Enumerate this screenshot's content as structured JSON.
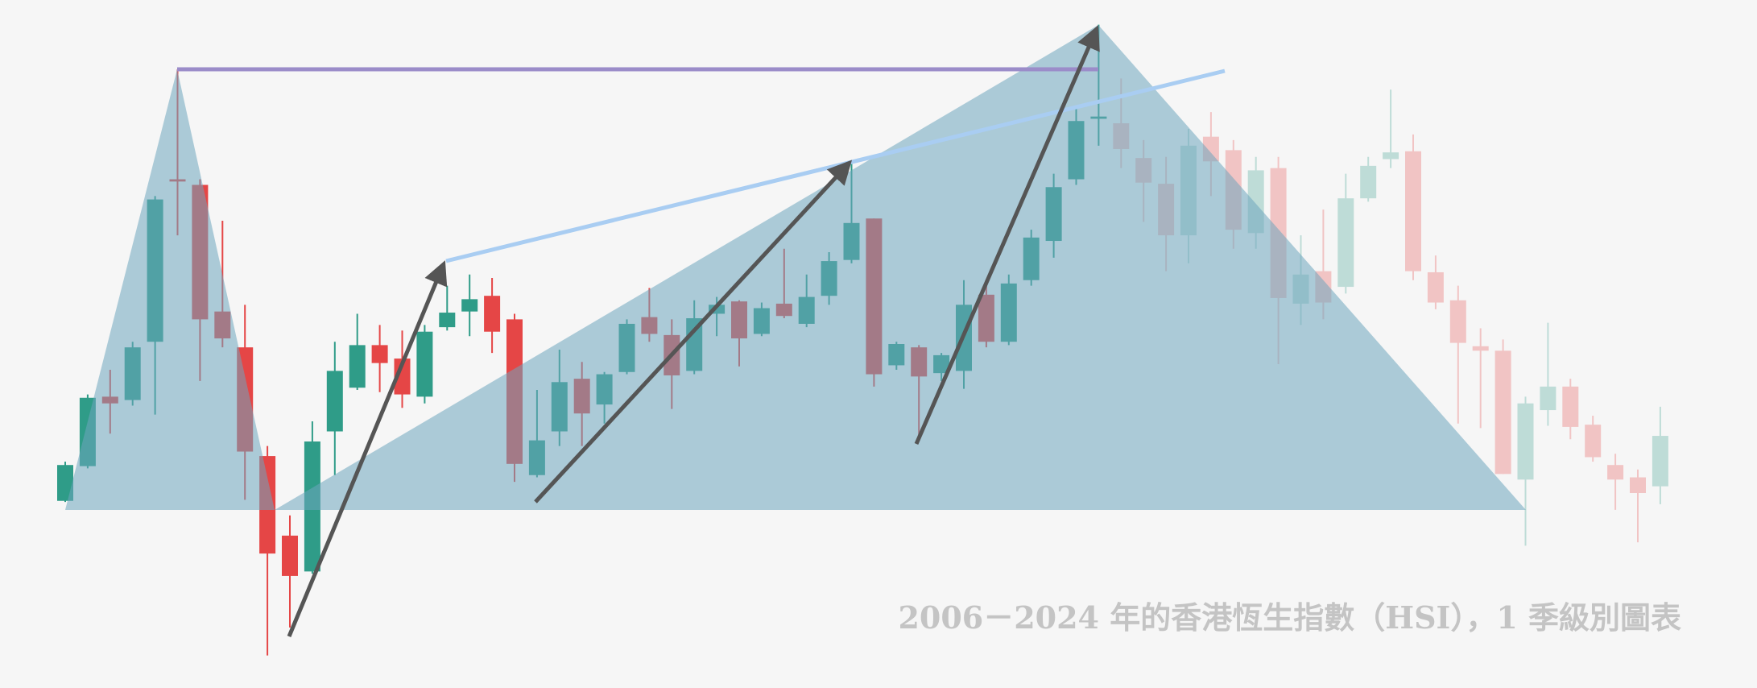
{
  "chart_data": {
    "type": "candlestick",
    "title": "2006－2024 年的香港恆生指數（HSI），1 季級別圖表",
    "up_color": "#2f9c88",
    "down_color": "#e54646",
    "ylim": [
      9840,
      34400
    ],
    "open": [
      16520,
      17760,
      20240,
      20120,
      22200,
      28000,
      27800,
      23280,
      22000,
      18120,
      15280,
      14000,
      19000,
      20560,
      22080,
      21600,
      20240,
      22720,
      23280,
      23840,
      23000,
      17440,
      19000,
      20880,
      19960,
      21120,
      23080,
      22440,
      21160,
      23200,
      23640,
      22480,
      23560,
      22840,
      23840,
      25120,
      26600,
      21360,
      22000,
      21080,
      21160,
      23880,
      22200,
      24400,
      25800,
      28000,
      30160,
      30000,
      28760,
      27840,
      26000,
      29520,
      29040,
      26080,
      28400,
      23560,
      24720,
      24160,
      27320,
      28720,
      29000,
      24680,
      23680,
      22040,
      21880,
      17280,
      19760,
      20600,
      19240,
      17800,
      17360,
      17040
    ],
    "high": [
      17920,
      20320,
      21200,
      22200,
      27400,
      31920,
      28000,
      26520,
      23520,
      18480,
      16000,
      19360,
      22200,
      23200,
      22800,
      22600,
      22800,
      24200,
      24600,
      24480,
      23200,
      20480,
      21920,
      21480,
      21120,
      23000,
      24120,
      23000,
      23680,
      23800,
      23680,
      23600,
      25520,
      24600,
      25400,
      28600,
      26600,
      22200,
      22080,
      21800,
      24400,
      24200,
      24600,
      26200,
      28200,
      30600,
      33520,
      31600,
      29400,
      28800,
      29800,
      30400,
      29400,
      28800,
      28800,
      26000,
      26920,
      28200,
      28800,
      31200,
      29600,
      25280,
      24200,
      22680,
      22280,
      20240,
      22880,
      20880,
      19560,
      18200,
      17640,
      19880
    ],
    "low": [
      16480,
      17680,
      18920,
      19920,
      19600,
      26000,
      20800,
      22000,
      16560,
      11000,
      12000,
      13920,
      17440,
      20480,
      20400,
      19840,
      20000,
      22600,
      22400,
      21800,
      17200,
      17360,
      18480,
      18480,
      19280,
      21040,
      22200,
      19800,
      21040,
      22400,
      21320,
      22400,
      23040,
      22720,
      23520,
      25000,
      20600,
      21200,
      18800,
      20800,
      20520,
      22000,
      22080,
      24200,
      25200,
      27800,
      29200,
      28400,
      26480,
      24720,
      25000,
      27400,
      25520,
      25520,
      21400,
      22800,
      23000,
      23920,
      27200,
      28400,
      24400,
      23360,
      19280,
      19120,
      17480,
      14920,
      19200,
      18720,
      17920,
      16200,
      15040,
      16400
    ],
    "close": [
      17800,
      20200,
      20000,
      22000,
      27280,
      27920,
      23000,
      22320,
      18280,
      14640,
      13840,
      18640,
      21160,
      22080,
      21440,
      20320,
      22560,
      23240,
      23720,
      22560,
      17840,
      18680,
      20760,
      19640,
      21040,
      22840,
      22480,
      21000,
      23040,
      23520,
      22320,
      23400,
      23120,
      23800,
      25080,
      26440,
      21040,
      22120,
      20960,
      21720,
      23520,
      22200,
      24280,
      25920,
      27720,
      30080,
      30240,
      29080,
      27880,
      26000,
      29200,
      28640,
      26200,
      28320,
      23760,
      24600,
      23600,
      27320,
      28480,
      28960,
      24720,
      23600,
      22160,
      21880,
      17480,
      20000,
      20600,
      19160,
      18080,
      17280,
      16800,
      18840
    ]
  }
}
